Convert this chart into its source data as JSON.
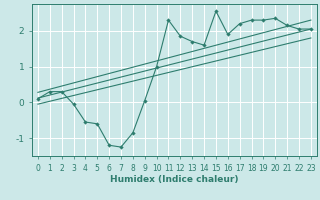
{
  "xlabel": "Humidex (Indice chaleur)",
  "xlim": [
    -0.5,
    23.5
  ],
  "ylim": [
    -1.5,
    2.75
  ],
  "yticks": [
    -1,
    0,
    1,
    2
  ],
  "xticks": [
    0,
    1,
    2,
    3,
    4,
    5,
    6,
    7,
    8,
    9,
    10,
    11,
    12,
    13,
    14,
    15,
    16,
    17,
    18,
    19,
    20,
    21,
    22,
    23
  ],
  "bg_color": "#cce8e8",
  "grid_color": "#ffffff",
  "line_color": "#2e7d6e",
  "line1_x": [
    0,
    1,
    2,
    3,
    4,
    5,
    6,
    7,
    8,
    9,
    10,
    11,
    12,
    13,
    14,
    15,
    16,
    17,
    18,
    19,
    20,
    21,
    22,
    23
  ],
  "line1_y": [
    0.1,
    0.3,
    0.3,
    -0.05,
    -0.55,
    -0.6,
    -1.2,
    -1.25,
    -0.85,
    0.05,
    1.0,
    2.3,
    1.85,
    1.7,
    1.6,
    2.55,
    1.9,
    2.2,
    2.3,
    2.3,
    2.35,
    2.15,
    2.05,
    2.05
  ],
  "line2_x": [
    0,
    23
  ],
  "line2_y": [
    0.12,
    2.05
  ],
  "line3_x": [
    0,
    23
  ],
  "line3_y": [
    0.28,
    2.3
  ],
  "line4_x": [
    0,
    23
  ],
  "line4_y": [
    -0.05,
    1.8
  ],
  "xlabel_fontsize": 6.5,
  "tick_fontsize": 5.5,
  "ytick_fontsize": 6.5
}
